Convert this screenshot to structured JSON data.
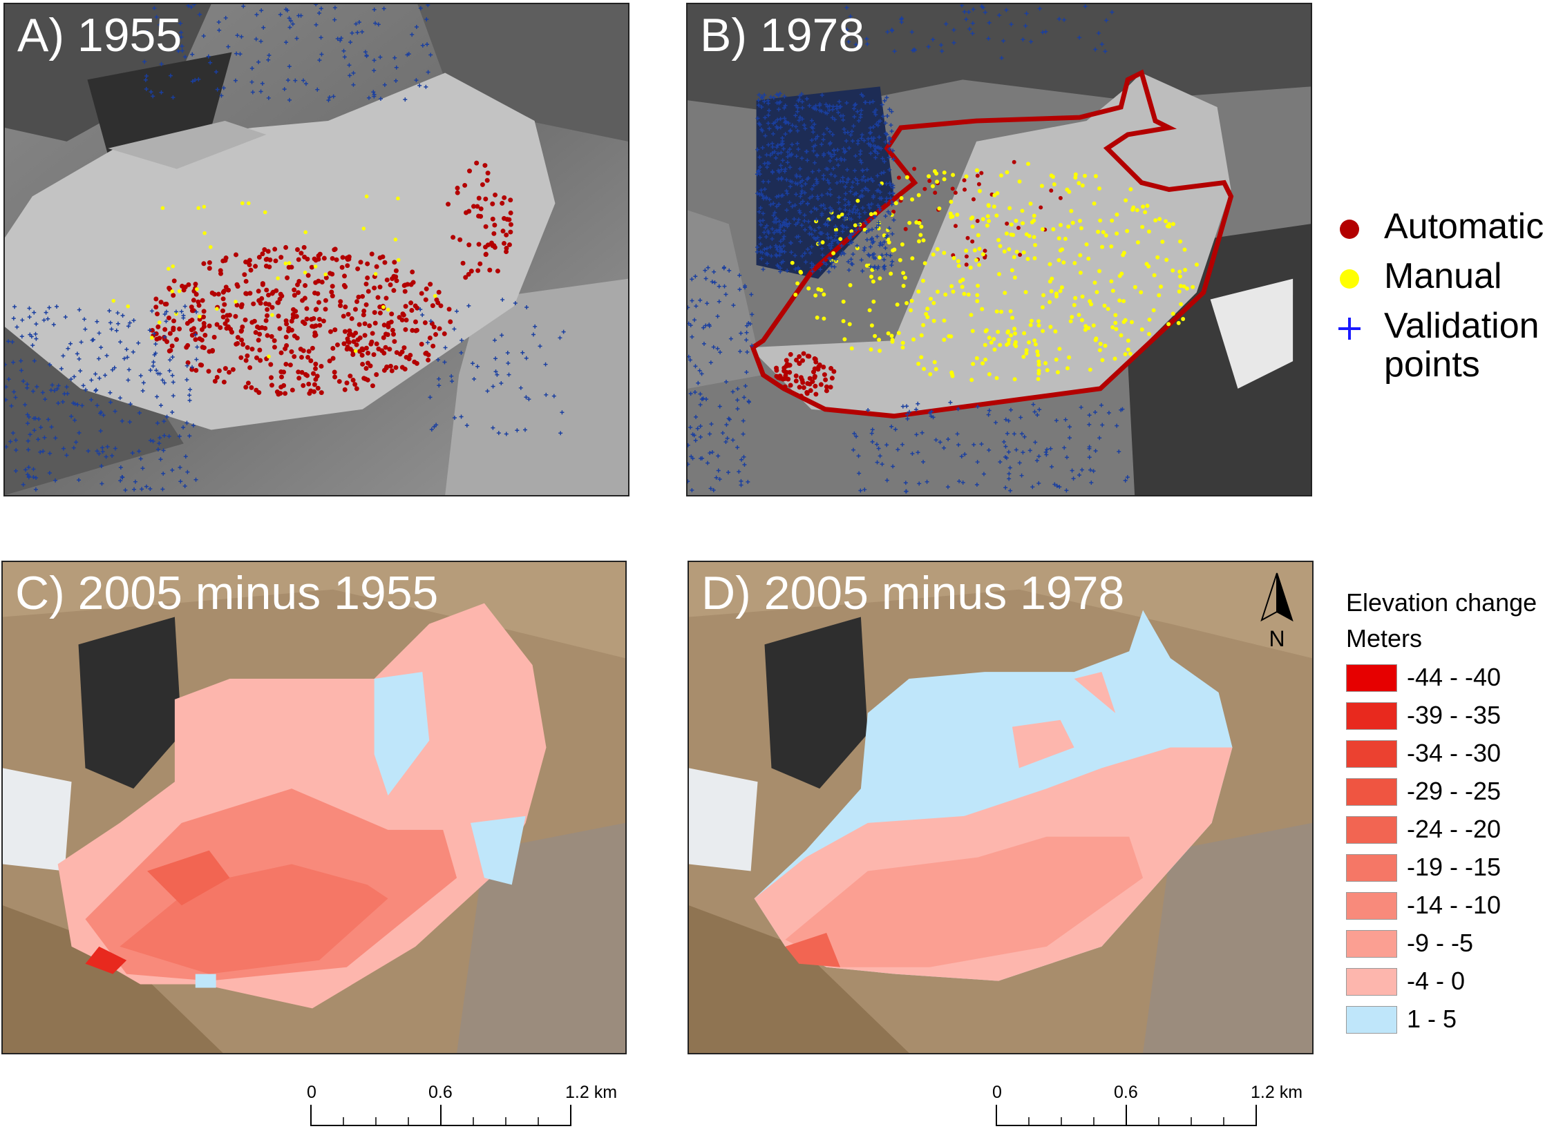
{
  "panels": {
    "a": {
      "title": "A) 1955"
    },
    "b": {
      "title": "B) 1978"
    },
    "c": {
      "title": "C) 2005 minus 1955"
    },
    "d": {
      "title": "D) 2005 minus 1978"
    }
  },
  "points_legend": {
    "items": [
      {
        "label": "Automatic",
        "symbol": "dot-icon",
        "color": "#b30000"
      },
      {
        "label": "Manual",
        "symbol": "dot-icon",
        "color": "#ffff00"
      },
      {
        "label": "Validation",
        "label2": "points",
        "symbol": "plus-icon",
        "color": "#1a1aff"
      }
    ]
  },
  "elevation_legend": {
    "title": "Elevation change",
    "unit": "Meters",
    "classes": [
      {
        "label": "-44 - -40",
        "color": "#e60000"
      },
      {
        "label": "-39 - -35",
        "color": "#e8291e"
      },
      {
        "label": "-34 - -30",
        "color": "#eb4130"
      },
      {
        "label": "-29 - -25",
        "color": "#ef5541"
      },
      {
        "label": "-24 - -20",
        "color": "#f26552"
      },
      {
        "label": "-19 - -15",
        "color": "#f57766"
      },
      {
        "label": "-14 - -10",
        "color": "#f88a7b"
      },
      {
        "label": "-9 - -5",
        "color": "#fb9f92"
      },
      {
        "label": "-4 - 0",
        "color": "#fdb6ad"
      },
      {
        "label": "1 - 5",
        "color": "#bfe6fa"
      }
    ]
  },
  "north_arrow": {
    "label": "N"
  },
  "scale_bars": [
    {
      "ticks": [
        "0",
        "0.6",
        "1.2 km"
      ]
    },
    {
      "ticks": [
        "0",
        "0.6",
        "1.2 km"
      ]
    }
  ]
}
